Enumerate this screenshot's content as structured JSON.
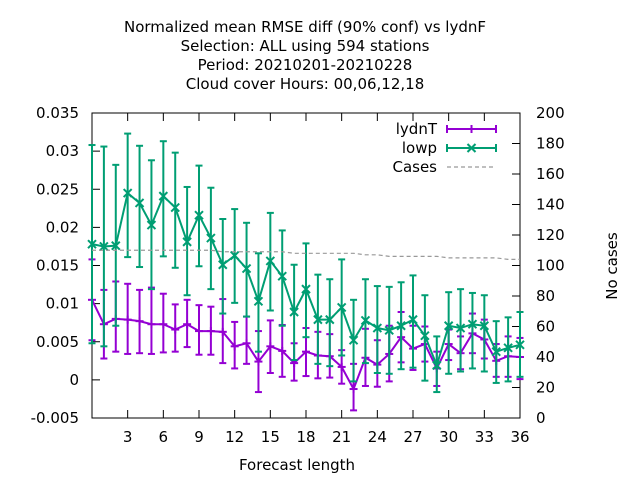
{
  "chart_data": {
    "type": "line",
    "title": [
      "Normalized mean RMSE diff (90% conf) vs lydnF",
      "Selection: ALL using   594 stations",
      "Period: 20210201-20210228",
      "Cloud cover   Hours:  00,06,12,18"
    ],
    "xlabel": "Forecast length",
    "ylabel": "",
    "y2label": "No cases",
    "xlim": [
      0,
      36
    ],
    "ylim": [
      -0.005,
      0.035
    ],
    "y2lim": [
      0,
      200
    ],
    "xticks": [
      3,
      6,
      9,
      12,
      15,
      18,
      21,
      24,
      27,
      30,
      33,
      36
    ],
    "yticks": [
      -0.005,
      0,
      0.005,
      0.01,
      0.015,
      0.02,
      0.025,
      0.03,
      0.035
    ],
    "ytick_labels": [
      "-0.005",
      "0",
      "0.005",
      "0.01",
      "0.015",
      "0.02",
      "0.025",
      "0.03",
      "0.035"
    ],
    "y2ticks": [
      0,
      20,
      40,
      60,
      80,
      100,
      120,
      140,
      160,
      180,
      200
    ],
    "grid": false,
    "legend_position": "top-right",
    "x": [
      0,
      1,
      2,
      3,
      4,
      5,
      6,
      7,
      8,
      9,
      10,
      11,
      12,
      13,
      14,
      15,
      16,
      17,
      18,
      19,
      20,
      21,
      22,
      23,
      24,
      25,
      26,
      27,
      28,
      29,
      30,
      31,
      32,
      33,
      34,
      35,
      36
    ],
    "series": [
      {
        "name": "lydnT",
        "color": "#9400d3",
        "marker": "plus",
        "axis": "y",
        "values": [
          0.0105,
          0.0073,
          0.008,
          0.0079,
          0.0077,
          0.0073,
          0.0073,
          0.0066,
          0.0073,
          0.0064,
          0.0064,
          0.0063,
          0.0044,
          0.0048,
          0.0024,
          0.0044,
          0.0038,
          0.0022,
          0.0037,
          0.0032,
          0.0031,
          0.0017,
          -0.0012,
          0.0029,
          0.002,
          0.0034,
          0.0056,
          0.0041,
          0.0047,
          0.0015,
          0.0047,
          0.0035,
          0.0061,
          0.0053,
          0.0025,
          0.0031,
          0.003
        ],
        "err_low": [
          0.0052,
          0.0028,
          0.0037,
          0.0034,
          0.0035,
          0.0034,
          0.0036,
          0.0037,
          0.0043,
          0.0033,
          0.0033,
          0.0022,
          0.0015,
          0.0021,
          -0.0016,
          0.0009,
          0.0004,
          -0.0001,
          0.0005,
          0.0002,
          0.0003,
          -0.0005,
          -0.004,
          -0.0008,
          -0.0009,
          -0.0002,
          0.0023,
          0.0013,
          0.0024,
          -0.0008,
          0.0026,
          0.0014,
          0.0035,
          0.0028,
          0.0004,
          0.0004,
          0.0001
        ],
        "err_high": [
          0.0158,
          0.0118,
          0.0129,
          0.0126,
          0.0118,
          0.0121,
          0.0113,
          0.0099,
          0.0105,
          0.0098,
          0.0096,
          0.0106,
          0.0076,
          0.0083,
          0.0064,
          0.0078,
          0.0072,
          0.0048,
          0.0068,
          0.0063,
          0.006,
          0.0039,
          0.0021,
          0.0067,
          0.0052,
          0.0071,
          0.0089,
          0.0071,
          0.007,
          0.0037,
          0.0066,
          0.0057,
          0.0087,
          0.0079,
          0.0047,
          0.0057,
          0.0055
        ]
      },
      {
        "name": "lowp",
        "color": "#009e73",
        "marker": "cross",
        "axis": "y",
        "values": [
          0.0178,
          0.0175,
          0.0176,
          0.0245,
          0.0232,
          0.0203,
          0.0241,
          0.0226,
          0.0181,
          0.0216,
          0.0186,
          0.0151,
          0.0163,
          0.0146,
          0.0103,
          0.0156,
          0.0136,
          0.0089,
          0.0119,
          0.0079,
          0.0079,
          0.0095,
          0.0052,
          0.0078,
          0.0068,
          0.0065,
          0.0071,
          0.0079,
          0.0058,
          0.0019,
          0.0071,
          0.0068,
          0.0073,
          0.0071,
          0.0037,
          0.0042,
          0.0046
        ],
        "err_low": [
          0.0048,
          0.0044,
          0.0071,
          0.0161,
          0.0148,
          0.0119,
          0.0162,
          0.0147,
          0.0111,
          0.0149,
          0.0119,
          0.0087,
          0.0101,
          0.0083,
          0.0037,
          0.0091,
          0.0071,
          0.0026,
          0.0056,
          0.0021,
          0.0018,
          0.0032,
          -0.0002,
          0.0022,
          0.0009,
          0.0008,
          0.0014,
          0.0016,
          -0.0001,
          -0.0016,
          0.0008,
          0.0011,
          0.0015,
          0.0011,
          -0.0004,
          -0.0002,
          0.0004
        ],
        "err_high": [
          0.0308,
          0.0306,
          0.0282,
          0.0323,
          0.0307,
          0.0288,
          0.0313,
          0.0298,
          0.0253,
          0.0281,
          0.0252,
          0.0211,
          0.0224,
          0.0206,
          0.0166,
          0.0219,
          0.0196,
          0.0151,
          0.0179,
          0.0138,
          0.0132,
          0.0158,
          0.0105,
          0.0132,
          0.0123,
          0.0122,
          0.0128,
          0.0137,
          0.0111,
          0.0057,
          0.0115,
          0.0119,
          0.0114,
          0.0111,
          0.0077,
          0.0082,
          0.0089
        ]
      },
      {
        "name": "Cases",
        "color": "#999999",
        "style": "dashed",
        "axis": "y2",
        "values": [
          110,
          110,
          110,
          110,
          110,
          110,
          110,
          110,
          110,
          110,
          110,
          109,
          109,
          109,
          109,
          109,
          109,
          108,
          108,
          108,
          108,
          108,
          108,
          107,
          107,
          106,
          106,
          106,
          106,
          106,
          105,
          105,
          105,
          105,
          105,
          104,
          104
        ]
      }
    ]
  }
}
